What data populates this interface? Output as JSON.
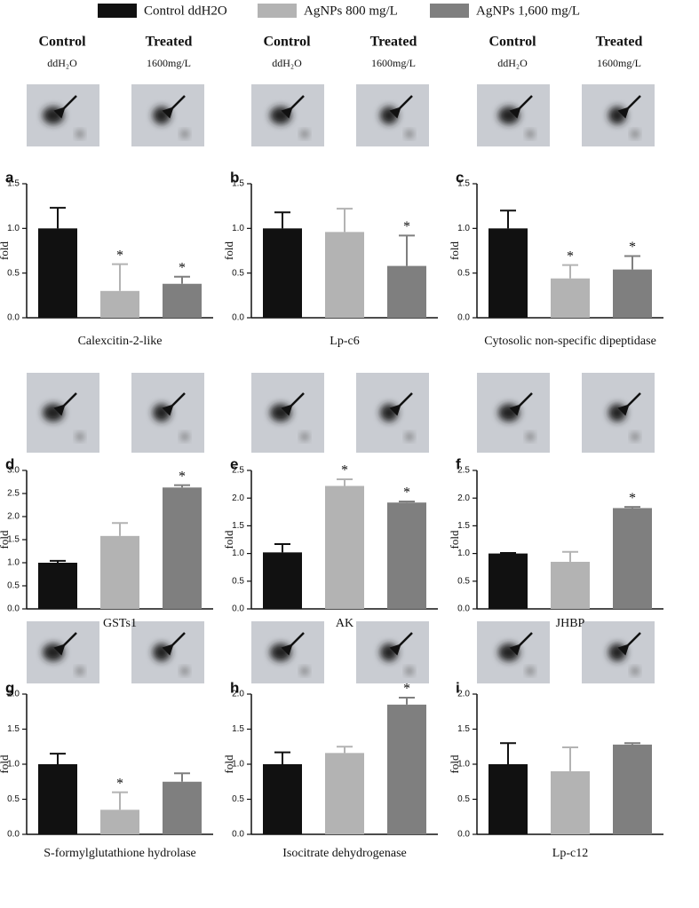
{
  "legend": [
    {
      "name": "Control ddH2O",
      "color": "#111111"
    },
    {
      "name": "AgNPs 800 mg/L",
      "color": "#b3b3b3"
    },
    {
      "name": "AgNPs 1,600 mg/L",
      "color": "#7f7f7f"
    }
  ],
  "gel_headers": [
    {
      "control": "Control",
      "control_sub": "ddH₂O",
      "treated": "Treated",
      "treated_sub": "1600mg/L"
    },
    {
      "control": "Control",
      "control_sub": "ddH₂O",
      "treated": "Treated",
      "treated_sub": "1600mg/L"
    },
    {
      "control": "Control",
      "control_sub": "ddH₂O",
      "treated": "Treated",
      "treated_sub": "1600mg/L"
    }
  ],
  "chart_data": [
    {
      "type": "bar",
      "panel": "a",
      "xlabel": "Calexcitin-2-like",
      "ylabel": "fold",
      "values": [
        1.0,
        0.3,
        0.38
      ],
      "errors": [
        0.23,
        0.3,
        0.08
      ],
      "significance": [
        null,
        "*",
        "*"
      ],
      "ylim": [
        0,
        1.5
      ],
      "yticks": [
        {
          "value": 0,
          "label": "0.0"
        },
        0.5,
        {
          "value": 1,
          "label": "1.0"
        },
        1.5
      ]
    },
    {
      "type": "bar",
      "panel": "b",
      "xlabel": "Lp-c6",
      "ylabel": "fold",
      "values": [
        1.0,
        0.96,
        0.58
      ],
      "errors": [
        0.18,
        0.26,
        0.34
      ],
      "significance": [
        null,
        null,
        "*"
      ],
      "ylim": [
        0,
        1.5
      ],
      "yticks": [
        {
          "value": 0,
          "label": "0.0"
        },
        0.5,
        {
          "value": 1,
          "label": "1.0"
        },
        1.5
      ]
    },
    {
      "type": "bar",
      "panel": "c",
      "xlabel": "Cytosolic non-specific dipeptidase",
      "ylabel": "fold",
      "values": [
        1.0,
        0.44,
        0.54
      ],
      "errors": [
        0.2,
        0.15,
        0.15
      ],
      "significance": [
        null,
        "*",
        "*"
      ],
      "ylim": [
        0,
        1.5
      ],
      "yticks": [
        {
          "value": 0,
          "label": "0.0"
        },
        0.5,
        {
          "value": 1,
          "label": "1.0"
        },
        1.5
      ]
    },
    {
      "type": "bar",
      "panel": "d",
      "xlabel": "GSTs1",
      "ylabel": "fold",
      "values": [
        1.0,
        1.58,
        2.63
      ],
      "errors": [
        0.04,
        0.28,
        0.05
      ],
      "significance": [
        null,
        null,
        "*"
      ],
      "ylim": [
        0,
        3
      ],
      "yticks": [
        {
          "value": 0,
          "label": "0.0"
        },
        0.5,
        {
          "value": 1,
          "label": "1.0"
        },
        1.5,
        {
          "value": 2,
          "label": "2.0"
        },
        2.5,
        {
          "value": 3,
          "label": "3.0"
        }
      ]
    },
    {
      "type": "bar",
      "panel": "e",
      "xlabel": "AK",
      "ylabel": "fold",
      "values": [
        1.02,
        2.22,
        1.92
      ],
      "errors": [
        0.15,
        0.12,
        0.02
      ],
      "significance": [
        null,
        "*",
        "*"
      ],
      "ylim": [
        0,
        2.5
      ],
      "yticks": [
        {
          "value": 0,
          "label": "0.0"
        },
        0.5,
        {
          "value": 1,
          "label": "1.0"
        },
        1.5,
        {
          "value": 2,
          "label": "2.0"
        },
        2.5
      ]
    },
    {
      "type": "bar",
      "panel": "f",
      "xlabel": "JHBP",
      "ylabel": "fold",
      "values": [
        1.0,
        0.85,
        1.82
      ],
      "errors": [
        0.01,
        0.18,
        0.02
      ],
      "significance": [
        null,
        null,
        "*"
      ],
      "ylim": [
        0,
        2.5
      ],
      "yticks": [
        {
          "value": 0,
          "label": "0.0"
        },
        0.5,
        {
          "value": 1,
          "label": "1.0"
        },
        1.5,
        {
          "value": 2,
          "label": "2.0"
        },
        2.5
      ]
    },
    {
      "type": "bar",
      "panel": "g",
      "xlabel": "S-formylglutathione hydrolase",
      "ylabel": "fold",
      "values": [
        1.0,
        0.35,
        0.75
      ],
      "errors": [
        0.15,
        0.25,
        0.12
      ],
      "significance": [
        null,
        "*",
        null
      ],
      "ylim": [
        0,
        2
      ],
      "yticks": [
        {
          "value": 0,
          "label": "0.0"
        },
        0.5,
        {
          "value": 1,
          "label": "1.0"
        },
        1.5,
        {
          "value": 2,
          "label": "2.0"
        }
      ]
    },
    {
      "type": "bar",
      "panel": "h",
      "xlabel": "Isocitrate dehydrogenase",
      "ylabel": "fold",
      "values": [
        1.0,
        1.16,
        1.85
      ],
      "errors": [
        0.17,
        0.09,
        0.1
      ],
      "significance": [
        null,
        null,
        "*"
      ],
      "ylim": [
        0,
        2
      ],
      "yticks": [
        {
          "value": 0,
          "label": "0.0"
        },
        0.5,
        {
          "value": 1,
          "label": "1.0"
        },
        1.5,
        {
          "value": 2,
          "label": "2.0"
        }
      ]
    },
    {
      "type": "bar",
      "panel": "i",
      "xlabel": "Lp-c12",
      "ylabel": "fold",
      "values": [
        1.0,
        0.9,
        1.28
      ],
      "errors": [
        0.3,
        0.34,
        0.02
      ],
      "significance": [
        null,
        null,
        null
      ],
      "ylim": [
        0,
        2
      ],
      "yticks": [
        {
          "value": 0,
          "label": "0.0"
        },
        0.5,
        {
          "value": 1,
          "label": "1.0"
        },
        1.5,
        {
          "value": 2,
          "label": "2.0"
        }
      ]
    }
  ]
}
